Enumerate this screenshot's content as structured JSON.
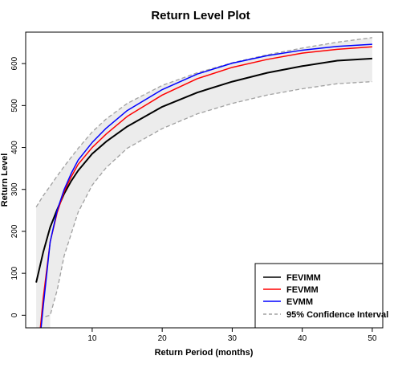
{
  "chart_data": {
    "type": "line",
    "title": "Return Level Plot",
    "xlabel": "Return Period (months)",
    "ylabel": "Return Level",
    "xlim": [
      0.5,
      51.5
    ],
    "ylim": [
      -30,
      675
    ],
    "x_ticks": [
      10,
      20,
      30,
      40,
      50
    ],
    "x_tick_labels": [
      "10",
      "20",
      "30",
      "40",
      "50"
    ],
    "y_ticks": [
      0,
      100,
      200,
      300,
      400,
      500,
      600
    ],
    "y_tick_labels": [
      "0",
      "100",
      "200",
      "300",
      "400",
      "500",
      "600"
    ],
    "grid": false,
    "legend_position": "bottom-right",
    "confidence_band": {
      "name": "95% Confidence Interval",
      "color": "#a0a0a0",
      "fill": "#ececec",
      "x": [
        2,
        3,
        4,
        5,
        6,
        8,
        10,
        12,
        15,
        20,
        25,
        30,
        35,
        40,
        45,
        50
      ],
      "upper": [
        258,
        285,
        308,
        332,
        355,
        398,
        437,
        468,
        505,
        548,
        578,
        602,
        621,
        637,
        651,
        662
      ],
      "lower": [
        null,
        null,
        0,
        60,
        142,
        246,
        310,
        352,
        398,
        445,
        480,
        505,
        525,
        540,
        552,
        557
      ]
    },
    "series": [
      {
        "name": "FEVIMM",
        "color": "#000000",
        "x": [
          2,
          3,
          4,
          5,
          6,
          7,
          8,
          10,
          12,
          15,
          20,
          25,
          30,
          35,
          40,
          45,
          50
        ],
        "values": [
          78,
          150,
          210,
          252,
          290,
          320,
          345,
          385,
          414,
          450,
          497,
          531,
          557,
          578,
          594,
          607,
          612
        ]
      },
      {
        "name": "FEVMM",
        "color": "#ff0000",
        "x": [
          2.6,
          3,
          4,
          5,
          6,
          7,
          8,
          10,
          12,
          15,
          20,
          25,
          30,
          35,
          40,
          45,
          50
        ],
        "values": [
          -30,
          40,
          175,
          245,
          295,
          330,
          360,
          400,
          432,
          474,
          525,
          564,
          591,
          610,
          625,
          634,
          640
        ]
      },
      {
        "name": "EVMM",
        "color": "#0000ff",
        "x": [
          2.7,
          3,
          4,
          5,
          6,
          7,
          8,
          10,
          12,
          15,
          20,
          25,
          30,
          35,
          40,
          45,
          50
        ],
        "values": [
          -30,
          20,
          175,
          250,
          300,
          338,
          370,
          412,
          446,
          488,
          538,
          575,
          601,
          619,
          632,
          641,
          646
        ]
      }
    ]
  }
}
